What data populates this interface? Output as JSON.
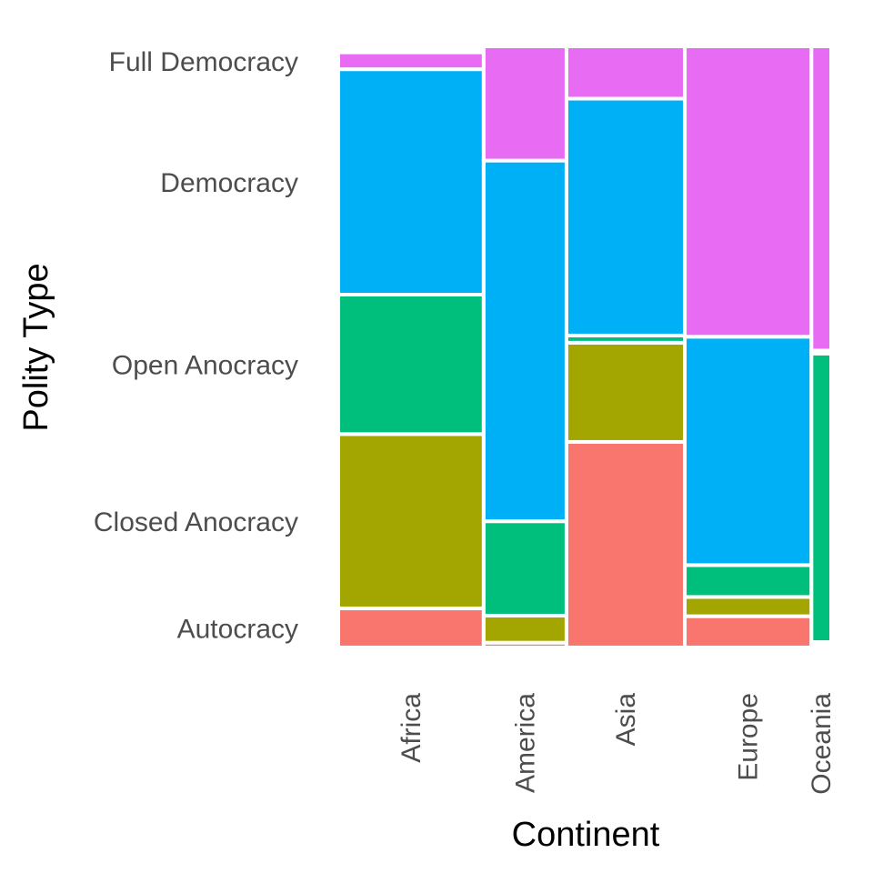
{
  "chart_data": {
    "type": "mosaic",
    "xlabel": "Continent",
    "ylabel": "Polity Type",
    "categories": [
      "Africa",
      "America",
      "Asia",
      "Europe",
      "Oceania"
    ],
    "levels": [
      "Autocracy",
      "Closed Anocracy",
      "Open Anocracy",
      "Democracy",
      "Full Democracy"
    ],
    "colors": {
      "Autocracy": "#F8766D",
      "Closed Anocracy": "#A3A500",
      "Open Anocracy": "#00BF7D",
      "Democracy": "#00B0F6",
      "Full Democracy": "#E76BF3"
    },
    "column_shares": [
      0.295,
      0.168,
      0.24,
      0.257,
      0.04
    ],
    "proportions": {
      "Africa": [
        0.065,
        0.29,
        0.232,
        0.375,
        0.028
      ],
      "America": [
        0.008,
        0.045,
        0.157,
        0.6,
        0.19
      ],
      "Asia": [
        0.342,
        0.165,
        0.012,
        0.394,
        0.087
      ],
      "Europe": [
        0.052,
        0.032,
        0.053,
        0.38,
        0.483
      ],
      "Oceania": [
        0.004,
        0.005,
        0.48,
        0.005,
        0.506
      ]
    },
    "y_tick_labels": [
      "Full Democracy",
      "Democracy",
      "Open Anocracy",
      "Closed Anocracy",
      "Autocracy"
    ],
    "grid": false,
    "legend": "none"
  }
}
